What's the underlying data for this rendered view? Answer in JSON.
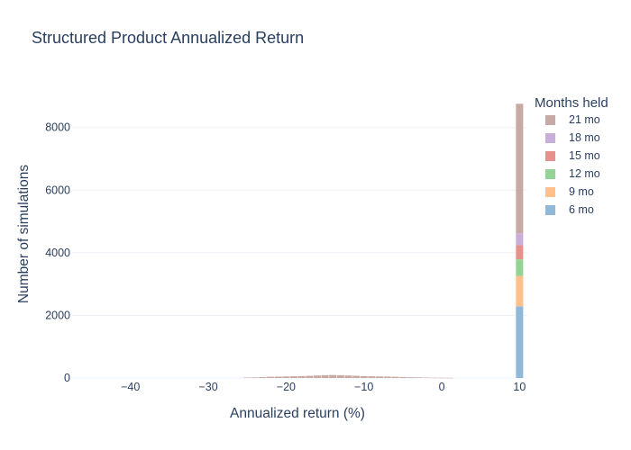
{
  "chart_data": {
    "type": "bar",
    "barmode": "stack",
    "title": "Structured Product Annualized Return",
    "xlabel": "Annualized return (%)",
    "ylabel": "Number of simulations",
    "xlim": [
      -47.5,
      11
    ],
    "ylim": [
      0,
      9200
    ],
    "xticks": [
      -40,
      -30,
      -20,
      -10,
      0,
      10
    ],
    "xtick_labels": [
      "−40",
      "−30",
      "−20",
      "−10",
      "0",
      "10"
    ],
    "yticks": [
      0,
      2000,
      4000,
      6000,
      8000
    ],
    "ytick_labels": [
      "0",
      "2000",
      "4000",
      "6000",
      "8000"
    ],
    "grid": true,
    "legend": {
      "title": "Months held",
      "placement": "right"
    },
    "bin_width": 1,
    "x": [
      -25,
      -24,
      -23,
      -22,
      -21,
      -20,
      -19,
      -18,
      -17,
      -16,
      -15,
      -14,
      -13,
      -12,
      -11,
      -10,
      -9,
      -8,
      -7,
      -6,
      -5,
      -4,
      -3,
      -2,
      -1,
      0,
      1,
      10
    ],
    "series": [
      {
        "name": "6 mo",
        "color": "#8fb8d9",
        "values": [
          0,
          0,
          0,
          0,
          0,
          0,
          0,
          0,
          0,
          0,
          0,
          0,
          0,
          0,
          0,
          0,
          0,
          0,
          0,
          0,
          0,
          0,
          0,
          0,
          0,
          0,
          0,
          2290
        ]
      },
      {
        "name": "9 mo",
        "color": "#ffc08a",
        "values": [
          0,
          0,
          0,
          0,
          0,
          0,
          0,
          0,
          0,
          0,
          0,
          0,
          0,
          0,
          0,
          0,
          0,
          0,
          0,
          0,
          0,
          0,
          0,
          0,
          0,
          0,
          0,
          970
        ]
      },
      {
        "name": "12 mo",
        "color": "#93d393",
        "values": [
          0,
          0,
          0,
          0,
          0,
          0,
          0,
          0,
          0,
          0,
          0,
          0,
          0,
          0,
          0,
          0,
          0,
          0,
          0,
          0,
          0,
          0,
          0,
          0,
          0,
          0,
          0,
          530
        ]
      },
      {
        "name": "15 mo",
        "color": "#e8908c",
        "values": [
          0,
          0,
          0,
          0,
          0,
          0,
          0,
          0,
          0,
          0,
          0,
          0,
          0,
          0,
          0,
          0,
          0,
          0,
          0,
          0,
          0,
          0,
          0,
          0,
          0,
          0,
          0,
          450
        ]
      },
      {
        "name": "18 mo",
        "color": "#c9aedb",
        "values": [
          0,
          0,
          0,
          0,
          0,
          0,
          0,
          0,
          0,
          0,
          0,
          0,
          0,
          0,
          0,
          0,
          0,
          0,
          0,
          0,
          0,
          0,
          0,
          0,
          0,
          0,
          0,
          380
        ]
      },
      {
        "name": "21 mo",
        "color": "#c7aaa3",
        "values": [
          15,
          20,
          30,
          40,
          45,
          50,
          55,
          60,
          70,
          80,
          90,
          95,
          90,
          80,
          70,
          60,
          55,
          50,
          45,
          40,
          30,
          25,
          20,
          15,
          10,
          8,
          5,
          4140
        ]
      }
    ],
    "legend_order": [
      "21 mo",
      "18 mo",
      "15 mo",
      "12 mo",
      "9 mo",
      "6 mo"
    ]
  }
}
